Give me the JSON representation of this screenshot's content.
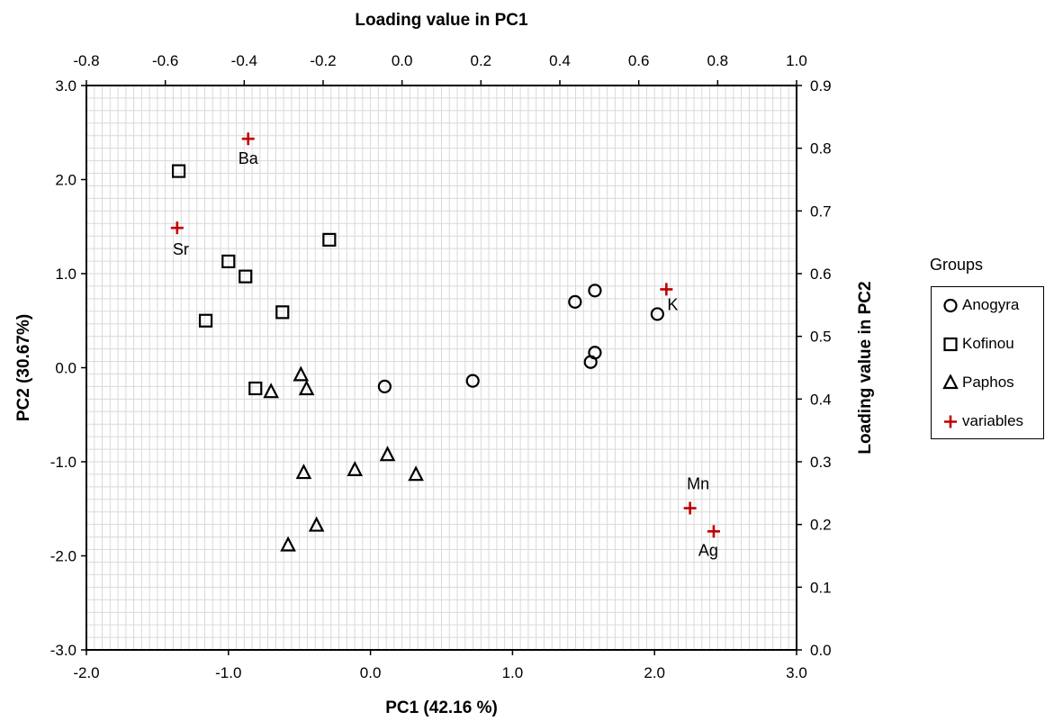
{
  "chart_data": {
    "type": "scatter",
    "title": "",
    "xlabel": "PC1 (42.16 %)",
    "ylabel": "PC2 (30.67%)",
    "x2label": "Loading value in PC1",
    "y2label": "Loading value in PC2",
    "xlim": [
      -2.0,
      3.0
    ],
    "ylim": [
      -3.0,
      3.0
    ],
    "x2lim": [
      -0.8,
      1.0
    ],
    "y2lim": [
      0.0,
      0.9
    ],
    "x_ticks": [
      "-2.0",
      "-1.0",
      "0.0",
      "1.0",
      "2.0",
      "3.0"
    ],
    "y_ticks": [
      "3.0",
      "2.0",
      "1.0",
      "0.0",
      "-1.0",
      "-2.0",
      "-3.0"
    ],
    "x2_ticks": [
      "-0.8",
      "-0.6",
      "-0.4",
      "-0.2",
      "0.0",
      "0.2",
      "0.4",
      "0.6",
      "0.8",
      "1.0"
    ],
    "y2_ticks": [
      "0.9",
      "0.8",
      "0.7",
      "0.6",
      "0.5",
      "0.4",
      "0.3",
      "0.2",
      "0.1",
      "0.0"
    ],
    "grid": true,
    "legend_position": "right",
    "legend_title": "Groups",
    "series": [
      {
        "name": "Anogyra",
        "marker": "circle",
        "color": "#000000",
        "points": [
          {
            "x": 0.1,
            "y": -0.2
          },
          {
            "x": 0.72,
            "y": -0.14
          },
          {
            "x": 1.44,
            "y": 0.7
          },
          {
            "x": 1.58,
            "y": 0.82
          },
          {
            "x": 2.02,
            "y": 0.57
          },
          {
            "x": 1.58,
            "y": 0.16
          },
          {
            "x": 1.55,
            "y": 0.06
          }
        ]
      },
      {
        "name": "Kofinou",
        "marker": "square",
        "color": "#000000",
        "points": [
          {
            "x": -1.35,
            "y": 2.09
          },
          {
            "x": -1.0,
            "y": 1.13
          },
          {
            "x": -0.88,
            "y": 0.97
          },
          {
            "x": -1.16,
            "y": 0.5
          },
          {
            "x": -0.29,
            "y": 1.36
          },
          {
            "x": -0.62,
            "y": 0.59
          },
          {
            "x": -0.81,
            "y": -0.22
          }
        ]
      },
      {
        "name": "Paphos",
        "marker": "triangle",
        "color": "#000000",
        "points": [
          {
            "x": -0.7,
            "y": -0.26
          },
          {
            "x": -0.49,
            "y": -0.08
          },
          {
            "x": -0.45,
            "y": -0.23
          },
          {
            "x": -0.47,
            "y": -1.12
          },
          {
            "x": -0.11,
            "y": -1.09
          },
          {
            "x": 0.12,
            "y": -0.93
          },
          {
            "x": 0.32,
            "y": -1.14
          },
          {
            "x": -0.58,
            "y": -1.89
          },
          {
            "x": -0.38,
            "y": -1.68
          }
        ]
      },
      {
        "name": "variables",
        "marker": "plus",
        "color": "#c00000",
        "axis": "secondary",
        "points": [
          {
            "label": "Ba",
            "x": -0.39,
            "y": 0.815
          },
          {
            "label": "Sr",
            "x": -0.57,
            "y": 0.673
          },
          {
            "label": "K",
            "x": 0.67,
            "y": 0.575
          },
          {
            "label": "Mn",
            "x": 0.73,
            "y": 0.226
          },
          {
            "label": "Ag",
            "x": 0.79,
            "y": 0.189
          }
        ]
      }
    ]
  }
}
